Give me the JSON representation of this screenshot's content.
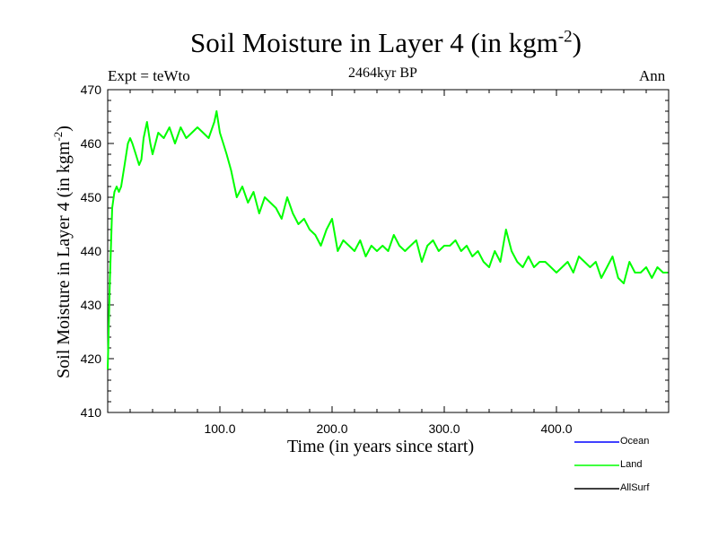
{
  "chart_data": {
    "type": "line",
    "title": "Soil Moisture in Layer 4 (in kgm",
    "title_exp": "-2",
    "title_close": ")",
    "subtitle": "2464kyr BP",
    "expt_label": "Expt = teWto",
    "season": "Ann",
    "xlabel": "Time (in years since start)",
    "ylabel": "Soil Moisture in Layer 4 (in kgm",
    "ylabel_exp": "-2",
    "ylabel_close": ")",
    "xlim": [
      0,
      500
    ],
    "ylim": [
      410,
      470
    ],
    "xticks": [
      100,
      200,
      300,
      400
    ],
    "xtick_labels": [
      "100.0",
      "200.0",
      "300.0",
      "400.0"
    ],
    "yticks": [
      410,
      420,
      430,
      440,
      450,
      460,
      470
    ],
    "ytick_labels": [
      "410",
      "420",
      "430",
      "440",
      "450",
      "460",
      "470"
    ],
    "series": [
      {
        "name": "Ocean",
        "color": "#0000ff",
        "x": [],
        "values": []
      },
      {
        "name": "Land",
        "color": "#00ff00",
        "x": [
          0,
          2,
          4,
          6,
          8,
          10,
          12,
          15,
          18,
          20,
          22,
          25,
          28,
          30,
          32,
          35,
          38,
          40,
          45,
          50,
          55,
          60,
          65,
          70,
          75,
          80,
          85,
          90,
          95,
          97,
          100,
          103,
          106,
          110,
          115,
          120,
          125,
          130,
          135,
          140,
          145,
          150,
          155,
          160,
          165,
          170,
          175,
          180,
          185,
          190,
          195,
          200,
          205,
          210,
          215,
          220,
          225,
          230,
          235,
          240,
          245,
          250,
          255,
          260,
          265,
          270,
          275,
          280,
          285,
          290,
          295,
          300,
          305,
          310,
          315,
          320,
          325,
          330,
          335,
          340,
          345,
          350,
          355,
          360,
          365,
          370,
          375,
          380,
          385,
          390,
          395,
          400,
          405,
          410,
          415,
          420,
          425,
          430,
          435,
          440,
          445,
          450,
          455,
          460,
          465,
          470,
          475,
          480,
          485,
          490,
          495,
          499
        ],
        "values": [
          418,
          435,
          448,
          451,
          452,
          451,
          452,
          456,
          460,
          461,
          460,
          458,
          456,
          457,
          461,
          464,
          460,
          458,
          462,
          461,
          463,
          460,
          463,
          461,
          462,
          463,
          462,
          461,
          464,
          466,
          462,
          460,
          458,
          455,
          450,
          452,
          449,
          451,
          447,
          450,
          449,
          448,
          446,
          450,
          447,
          445,
          446,
          444,
          443,
          441,
          444,
          446,
          440,
          442,
          441,
          440,
          442,
          439,
          441,
          440,
          441,
          440,
          443,
          441,
          440,
          441,
          442,
          438,
          441,
          442,
          440,
          441,
          441,
          442,
          440,
          441,
          439,
          440,
          438,
          437,
          440,
          438,
          444,
          440,
          438,
          437,
          439,
          437,
          438,
          438,
          437,
          436,
          437,
          438,
          436,
          439,
          438,
          437,
          438,
          435,
          437,
          439,
          435,
          434,
          438,
          436,
          436,
          437,
          435,
          437,
          436,
          436
        ]
      },
      {
        "name": "AllSurf",
        "color": "#000000",
        "x": [],
        "values": []
      }
    ],
    "legend_position": "bottom-right",
    "grid": false
  }
}
